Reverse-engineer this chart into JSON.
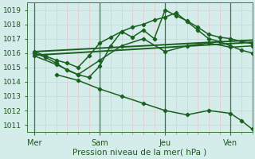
{
  "bg_color": "#d4ecea",
  "grid_h_color": "#c8dede",
  "grid_v_minor_color": "#e8c8c8",
  "grid_v_major_color": "#b8d0d0",
  "line_color": "#1a6020",
  "vline_color": "#3a7a3a",
  "xlabel": "Pression niveau de la mer( hPa )",
  "ylim": [
    1010.5,
    1019.5
  ],
  "yticks": [
    1011,
    1012,
    1013,
    1014,
    1015,
    1016,
    1017,
    1018,
    1019
  ],
  "xtick_labels": [
    "Mer",
    "Sam",
    "Jeu",
    "Ven"
  ],
  "xtick_positions": [
    0,
    36,
    72,
    108
  ],
  "xlim": [
    -4,
    120
  ],
  "num_x_minor": 120,
  "vline_x": [
    0,
    36,
    72,
    108
  ],
  "lines": [
    {
      "x": [
        0,
        6,
        12,
        18,
        24,
        30,
        36,
        42,
        48,
        54,
        60,
        66,
        72,
        78,
        84,
        90,
        96,
        102,
        108,
        114,
        120
      ],
      "y": [
        1016.0,
        1015.7,
        1015.3,
        1014.8,
        1014.5,
        1014.3,
        1015.1,
        1016.5,
        1017.5,
        1017.1,
        1017.6,
        1017.0,
        1019.0,
        1018.6,
        1018.25,
        1017.8,
        1017.3,
        1017.1,
        1017.0,
        1016.8,
        1016.65
      ],
      "has_marker": true,
      "linewidth": 1.1
    },
    {
      "x": [
        0,
        6,
        12,
        18,
        24,
        30,
        36,
        42,
        48,
        54,
        60,
        66,
        72,
        78,
        84,
        90,
        96,
        102,
        108,
        114,
        120
      ],
      "y": [
        1016.1,
        1015.8,
        1015.5,
        1015.3,
        1015.0,
        1015.8,
        1016.7,
        1017.1,
        1017.5,
        1017.8,
        1018.0,
        1018.3,
        1018.5,
        1018.8,
        1018.2,
        1017.6,
        1017.0,
        1016.8,
        1016.5,
        1016.2,
        1016.0
      ],
      "has_marker": true,
      "linewidth": 1.1
    },
    {
      "x": [
        0,
        12,
        24,
        36,
        48,
        60,
        72,
        84,
        96,
        108,
        120
      ],
      "y": [
        1015.8,
        1015.2,
        1014.5,
        1015.5,
        1016.5,
        1017.0,
        1016.1,
        1016.5,
        1016.7,
        1016.4,
        1016.5
      ],
      "has_marker": true,
      "linewidth": 1.1
    },
    {
      "x": [
        0,
        120
      ],
      "y": [
        1015.85,
        1016.75
      ],
      "has_marker": false,
      "linewidth": 1.4
    },
    {
      "x": [
        0,
        120
      ],
      "y": [
        1016.1,
        1016.9
      ],
      "has_marker": false,
      "linewidth": 1.4
    },
    {
      "x": [
        12,
        24,
        36,
        48,
        60,
        72,
        84,
        96,
        108,
        114,
        120
      ],
      "y": [
        1014.5,
        1014.1,
        1013.5,
        1013.0,
        1012.5,
        1012.0,
        1011.7,
        1012.0,
        1011.8,
        1011.3,
        1010.7
      ],
      "has_marker": true,
      "linewidth": 1.1
    }
  ]
}
